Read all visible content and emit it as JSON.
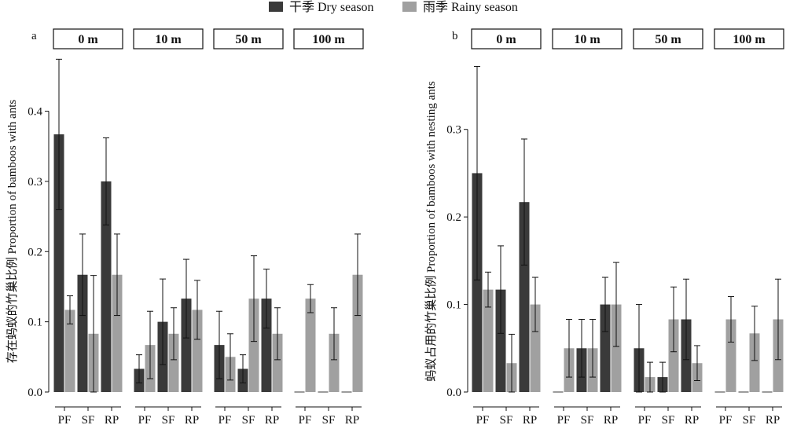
{
  "colors": {
    "dry": "#3a3a3a",
    "rainy": "#a0a0a0"
  },
  "chart_data": [
    {
      "type": "bar",
      "panel": "a",
      "ylabel": "存在蚂蚁的竹巢比例 Proportion of bamboos with ants",
      "ylim": [
        0,
        0.48
      ],
      "yticks": [
        0.0,
        0.1,
        0.2,
        0.3,
        0.4
      ],
      "ytick_labels": [
        "0.0",
        "0.1",
        "0.2",
        "0.3",
        "0.4"
      ],
      "legend": {
        "placement": "top-center",
        "entries": [
          "干季 Dry season",
          "雨季 Rainy season"
        ]
      },
      "categories": [
        "PF",
        "SF",
        "RP"
      ],
      "facets": [
        {
          "label": "0 m",
          "dry": [
            0.367,
            0.167,
            0.3
          ],
          "dry_err": [
            0.107,
            0.058,
            0.062
          ],
          "rainy": [
            0.117,
            0.083,
            0.167
          ],
          "rainy_err": [
            0.02,
            0.083,
            0.058
          ]
        },
        {
          "label": "10 m",
          "dry": [
            0.033,
            0.1,
            0.133
          ],
          "dry_err": [
            0.02,
            0.061,
            0.056
          ],
          "rainy": [
            0.067,
            0.083,
            0.117
          ],
          "rainy_err": [
            0.048,
            0.037,
            0.042
          ]
        },
        {
          "label": "50 m",
          "dry": [
            0.067,
            0.033,
            0.133
          ],
          "dry_err": [
            0.048,
            0.02,
            0.042
          ],
          "rainy": [
            0.05,
            0.133,
            0.083
          ],
          "rainy_err": [
            0.033,
            0.061,
            0.037
          ]
        },
        {
          "label": "100 m",
          "dry": [
            0.0,
            0.0,
            0.0
          ],
          "dry_err": [
            0.0,
            0.0,
            0.0
          ],
          "rainy": [
            0.133,
            0.083,
            0.167
          ],
          "rainy_err": [
            0.02,
            0.037,
            0.058
          ]
        }
      ]
    },
    {
      "type": "bar",
      "panel": "b",
      "ylabel": "蚂蚁占用的竹巢比例 Proportion of bamboos with nesting ants",
      "ylim": [
        0,
        0.385
      ],
      "yticks": [
        0.0,
        0.1,
        0.2,
        0.3
      ],
      "ytick_labels": [
        "0.0",
        "0.1",
        "0.2",
        "0.3"
      ],
      "categories": [
        "PF",
        "SF",
        "RP"
      ],
      "facets": [
        {
          "label": "0 m",
          "dry": [
            0.25,
            0.117,
            0.217
          ],
          "dry_err": [
            0.122,
            0.05,
            0.072
          ],
          "rainy": [
            0.117,
            0.033,
            0.1
          ],
          "rainy_err": [
            0.02,
            0.033,
            0.031
          ]
        },
        {
          "label": "10 m",
          "dry": [
            0.0,
            0.05,
            0.1
          ],
          "dry_err": [
            0.0,
            0.033,
            0.031
          ],
          "rainy": [
            0.05,
            0.05,
            0.1
          ],
          "rainy_err": [
            0.033,
            0.033,
            0.048
          ]
        },
        {
          "label": "50 m",
          "dry": [
            0.05,
            0.017,
            0.083
          ],
          "dry_err": [
            0.05,
            0.017,
            0.046
          ],
          "rainy": [
            0.017,
            0.083,
            0.033
          ],
          "rainy_err": [
            0.017,
            0.037,
            0.02
          ]
        },
        {
          "label": "100 m",
          "dry": [
            0.0,
            0.0,
            0.0
          ],
          "dry_err": [
            0.0,
            0.0,
            0.0
          ],
          "rainy": [
            0.083,
            0.067,
            0.083
          ],
          "rainy_err": [
            0.026,
            0.031,
            0.046
          ]
        }
      ]
    }
  ]
}
